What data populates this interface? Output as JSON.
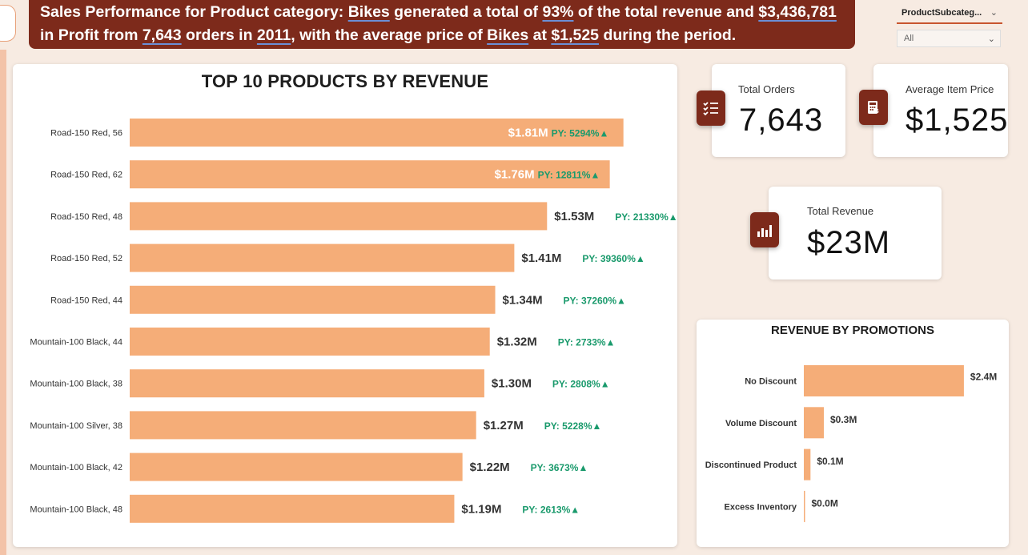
{
  "banner": {
    "t1": "Sales Performance for Product category: ",
    "category": "Bikes",
    "t2": " generated a total of ",
    "pct": "93%",
    "t3": " of the total revenue and ",
    "profit": "$3,436,781",
    "t4": "in Profit from ",
    "orders": "7,643",
    "t5": " orders in ",
    "year": "2011",
    "t6": ", with the average price of ",
    "category2": "Bikes",
    "t7": " at ",
    "avg_price": "$1,525",
    "t8": " during the period."
  },
  "slicer": {
    "title": "ProductSubcateg...",
    "value": "All"
  },
  "kpis": {
    "orders": {
      "label": "Total Orders",
      "value": "7,643",
      "icon": "checklist-icon"
    },
    "avg_price": {
      "label": "Average Item Price",
      "value": "$1,525",
      "icon": "calculator-icon"
    },
    "revenue": {
      "label": "Total Revenue",
      "value": "$23M",
      "icon": "bar-chart-icon"
    }
  },
  "colors": {
    "bar": "#f5ad78",
    "accent": "#7d2a1b",
    "py": "#1a9a6c"
  },
  "chart_data": [
    {
      "type": "bar",
      "orientation": "horizontal",
      "title": "TOP 10 PRODUCTS BY REVENUE",
      "categories": [
        "Road-150 Red, 56",
        "Road-150 Red, 62",
        "Road-150 Red, 48",
        "Road-150 Red, 52",
        "Road-150 Red, 44",
        "Mountain-100 Black, 44",
        "Mountain-100 Black, 38",
        "Mountain-100 Silver, 38",
        "Mountain-100 Black, 42",
        "Mountain-100 Black, 48"
      ],
      "values": [
        1.81,
        1.76,
        1.53,
        1.41,
        1.34,
        1.32,
        1.3,
        1.27,
        1.22,
        1.19
      ],
      "unit": "$M",
      "data_labels": [
        "$1.81M",
        "$1.76M",
        "$1.53M",
        "$1.41M",
        "$1.34M",
        "$1.32M",
        "$1.30M",
        "$1.27M",
        "$1.22M",
        "$1.19M"
      ],
      "py_labels": [
        "PY: 5294%▲",
        "PY: 12811%▲",
        "PY: 21330%▲",
        "PY: 39360%▲",
        "PY: 37260%▲",
        "PY: 2733%▲",
        "PY: 2808%▲",
        "PY: 5228%▲",
        "PY: 3673%▲",
        "PY: 2613%▲"
      ],
      "xlim": [
        0,
        2.0
      ]
    },
    {
      "type": "bar",
      "orientation": "horizontal",
      "title": "REVENUE BY PROMOTIONS",
      "categories": [
        "No Discount",
        "Volume Discount",
        "Discontinued Product",
        "Excess Inventory"
      ],
      "values": [
        2.4,
        0.3,
        0.1,
        0.0
      ],
      "unit": "$M",
      "data_labels": [
        "$2.4M",
        "$0.3M",
        "$0.1M",
        "$0.0M"
      ],
      "xlim": [
        0,
        2.4
      ]
    }
  ]
}
